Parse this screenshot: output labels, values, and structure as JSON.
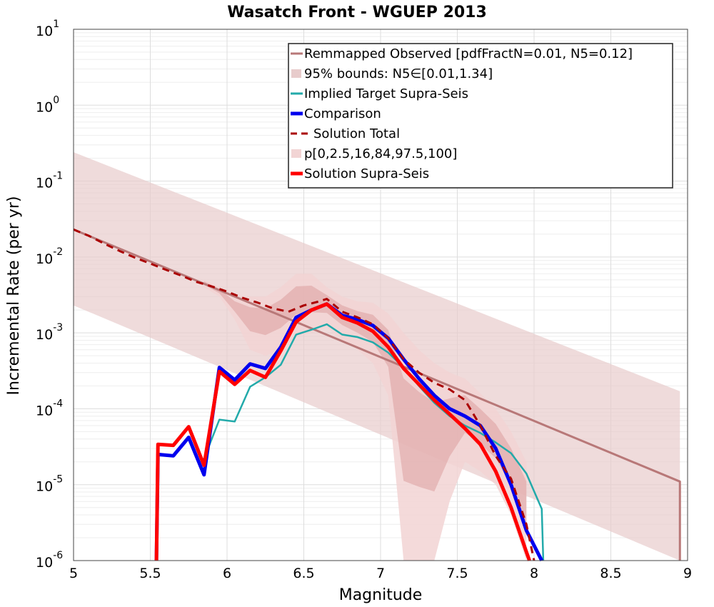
{
  "chart_data": {
    "type": "line",
    "title": "Wasatch Front - WGUEP 2013",
    "xlabel": "Magnitude",
    "ylabel": "Incremental Rate (per yr)",
    "xlim": [
      5,
      9
    ],
    "ylim": [
      1e-06,
      10
    ],
    "yscale": "log",
    "grid": true,
    "legend_position": "top-right",
    "x_ticks": [
      "5",
      "5.5",
      "6",
      "6.5",
      "7",
      "7.5",
      "8",
      "8.5",
      "9"
    ],
    "y_ticks": [
      {
        "base": "10",
        "exp": "-6"
      },
      {
        "base": "10",
        "exp": "-5"
      },
      {
        "base": "10",
        "exp": "-4"
      },
      {
        "base": "10",
        "exp": "-3"
      },
      {
        "base": "10",
        "exp": "-2"
      },
      {
        "base": "10",
        "exp": "-1"
      },
      {
        "base": "10",
        "exp": "0"
      },
      {
        "base": "10",
        "exp": "1"
      }
    ],
    "legend": [
      {
        "label": "Remmapped Observed [pdfFractN=0.01, N5=0.12]",
        "style": "line",
        "color": "#b87878"
      },
      {
        "label": "95% bounds: N5∈[0.01,1.34]",
        "style": "band",
        "color": "#e8cccc"
      },
      {
        "label": "Implied Target Supra-Seis",
        "style": "line",
        "color": "#22aaaa"
      },
      {
        "label": "Comparison",
        "style": "thickline",
        "color": "#0000ee"
      },
      {
        "label": "Solution Total",
        "style": "dashed",
        "color": "#aa0000"
      },
      {
        "label": "p[0,2.5,16,84,97.5,100]",
        "style": "band",
        "color": "#f2d4d4"
      },
      {
        "label": "Solution Supra-Seis",
        "style": "thickline",
        "color": "#ff0000"
      }
    ],
    "series": [
      {
        "name": "Remmapped Observed [pdfFractN=0.01, N5=0.12]",
        "color": "#b87878",
        "x": [
          5.0,
          8.95,
          8.95
        ],
        "y": [
          0.023,
          1.1e-05,
          1e-06
        ]
      },
      {
        "name": "95% bounds: N5∈[0.01,1.34]",
        "type": "band",
        "color": "#e8cccc",
        "x": [
          5.0,
          8.95
        ],
        "upper": [
          0.24,
          0.00017
        ],
        "lower": [
          0.0023,
          1e-06
        ]
      },
      {
        "name": "Implied Target Supra-Seis",
        "color": "#22aaaa",
        "x": [
          5.85,
          5.95,
          6.05,
          6.15,
          6.25,
          6.35,
          6.45,
          6.55,
          6.65,
          6.75,
          6.85,
          6.95,
          7.05,
          7.15,
          7.25,
          7.35,
          7.45,
          7.55,
          7.65,
          7.75,
          7.85,
          7.95,
          8.05,
          8.06
        ],
        "y": [
          2.2e-05,
          7.2e-05,
          6.8e-05,
          0.000195,
          0.00026,
          0.00038,
          0.00095,
          0.0011,
          0.0013,
          0.00095,
          0.00088,
          0.00075,
          0.00055,
          0.00035,
          0.0002,
          0.00012,
          8e-05,
          6e-05,
          4.8e-05,
          3.6e-05,
          2.6e-05,
          1.4e-05,
          4.8e-06,
          1e-06
        ]
      },
      {
        "name": "p[0,2.5,16,84,97.5,100]",
        "type": "band",
        "color": "#f2d4d4",
        "x": [
          5.85,
          5.95,
          6.05,
          6.15,
          6.25,
          6.35,
          6.45,
          6.55,
          6.65,
          6.75,
          6.85,
          6.95,
          7.05,
          7.15,
          7.25,
          7.35,
          7.45,
          7.55,
          7.65,
          7.75,
          7.85,
          7.95
        ],
        "upper": [
          0.005,
          0.004,
          0.003,
          0.003,
          0.003,
          0.004,
          0.006,
          0.006,
          0.004,
          0.003,
          0.0026,
          0.0025,
          0.0018,
          0.001,
          0.0006,
          0.0004,
          0.0003,
          0.00025,
          0.00016,
          0.0001,
          5e-05,
          2e-05
        ],
        "lower": [
          0.004,
          0.003,
          0.0015,
          0.0006,
          0.0005,
          0.0006,
          0.0009,
          0.001,
          0.0012,
          0.0008,
          0.0006,
          0.0004,
          0.00015,
          1e-06,
          1e-06,
          1e-06,
          6e-06,
          2e-05,
          1.5e-05,
          1e-05,
          4e-06,
          1e-06
        ]
      },
      {
        "name": "Comparison",
        "color": "#0000ee",
        "x": [
          5.54,
          5.55,
          5.65,
          5.75,
          5.85,
          5.95,
          6.05,
          6.15,
          6.25,
          6.35,
          6.45,
          6.55,
          6.65,
          6.75,
          6.85,
          6.95,
          7.05,
          7.15,
          7.25,
          7.35,
          7.45,
          7.55,
          7.65,
          7.75,
          7.85,
          7.95,
          8.05
        ],
        "y": [
          1e-06,
          2.5e-05,
          2.4e-05,
          4.2e-05,
          1.35e-05,
          0.00035,
          0.00024,
          0.00039,
          0.00034,
          0.00065,
          0.0016,
          0.002,
          0.0024,
          0.0017,
          0.0015,
          0.00125,
          0.00085,
          0.00045,
          0.00025,
          0.00015,
          0.0001,
          8e-05,
          6e-05,
          3e-05,
          1e-05,
          2.5e-06,
          1e-06
        ]
      },
      {
        "name": "Solution Total",
        "color": "#aa0000",
        "x": [
          5.0,
          5.1,
          5.2,
          5.3,
          5.4,
          5.5,
          5.6,
          5.7,
          5.8,
          5.9,
          6.0,
          6.1,
          6.2,
          6.3,
          6.4,
          6.5,
          6.6,
          6.65,
          6.75,
          6.85,
          6.95,
          7.05,
          7.15,
          7.25,
          7.35,
          7.45,
          7.55,
          7.65,
          7.75,
          7.85,
          7.95,
          8.0
        ],
        "y": [
          0.023,
          0.019,
          0.015,
          0.012,
          0.0098,
          0.0082,
          0.0068,
          0.0057,
          0.0047,
          0.0041,
          0.0035,
          0.0029,
          0.0025,
          0.0021,
          0.0019,
          0.0023,
          0.0026,
          0.0028,
          0.0019,
          0.0016,
          0.0013,
          0.00085,
          0.00045,
          0.0003,
          0.00022,
          0.00018,
          0.00013,
          6e-05,
          2.4e-05,
          1.2e-05,
          3e-06,
          1e-06
        ]
      },
      {
        "name": "Solution Supra-Seis",
        "color": "#ff0000",
        "x": [
          5.54,
          5.55,
          5.65,
          5.75,
          5.85,
          5.95,
          6.05,
          6.15,
          6.25,
          6.35,
          6.45,
          6.55,
          6.65,
          6.75,
          6.85,
          6.95,
          7.05,
          7.15,
          7.25,
          7.35,
          7.45,
          7.55,
          7.65,
          7.75,
          7.85,
          7.95,
          7.97
        ],
        "y": [
          1e-06,
          3.4e-05,
          3.3e-05,
          5.8e-05,
          1.8e-05,
          0.00031,
          0.00021,
          0.00032,
          0.00026,
          0.00058,
          0.0014,
          0.002,
          0.0024,
          0.0016,
          0.00135,
          0.00105,
          0.00065,
          0.00034,
          0.00021,
          0.00013,
          8.5e-05,
          5.5e-05,
          3.4e-05,
          1.5e-05,
          5e-06,
          1.3e-06,
          1e-06
        ]
      }
    ]
  }
}
